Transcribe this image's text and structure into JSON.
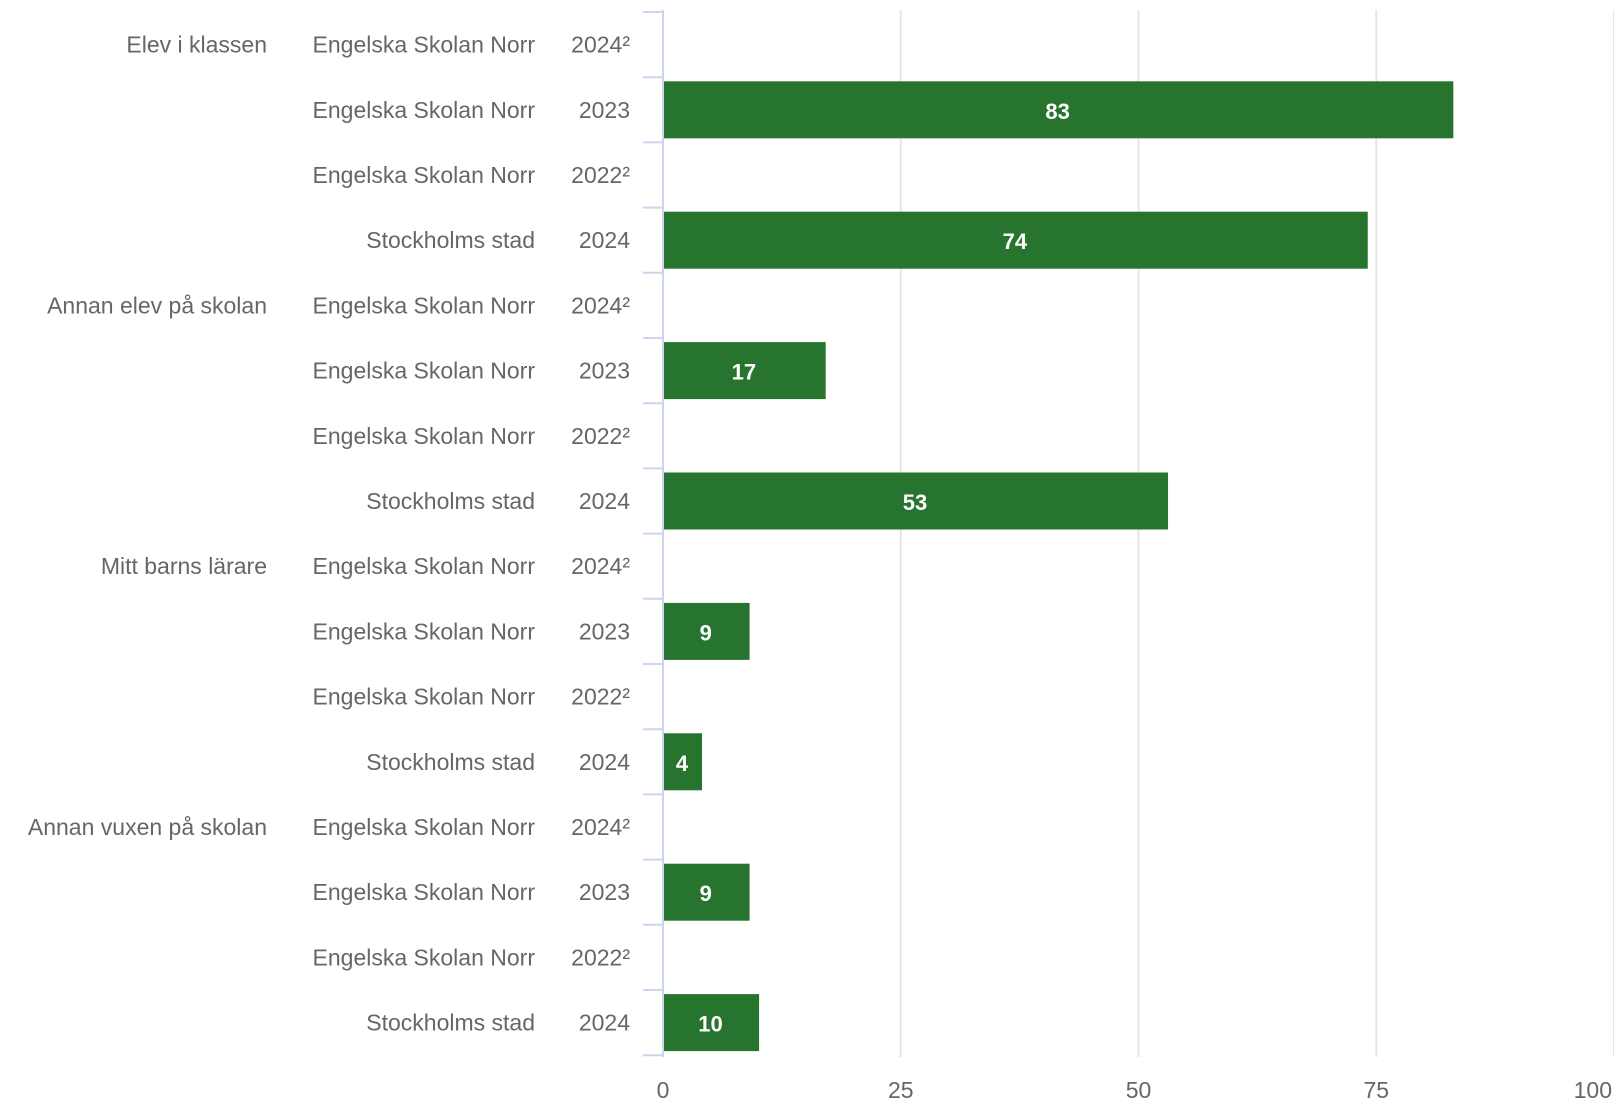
{
  "chart_data": {
    "type": "bar",
    "orientation": "horizontal",
    "xlim": [
      0,
      100
    ],
    "x_ticks": [
      "0",
      "25",
      "50",
      "75",
      "100"
    ],
    "grid": true,
    "legend": "none",
    "bar_color": "#27742f",
    "groups": [
      {
        "category": "Elev i klassen",
        "rows": [
          {
            "entity": "Engelska Skolan Norr",
            "year": "2024²",
            "value": null,
            "label": ""
          },
          {
            "entity": "Engelska Skolan Norr",
            "year": "2023",
            "value": 83,
            "label": "83"
          },
          {
            "entity": "Engelska Skolan Norr",
            "year": "2022²",
            "value": null,
            "label": ""
          },
          {
            "entity": "Stockholms stad",
            "year": "2024",
            "value": 74,
            "label": "74"
          }
        ]
      },
      {
        "category": "Annan elev på skolan",
        "rows": [
          {
            "entity": "Engelska Skolan Norr",
            "year": "2024²",
            "value": null,
            "label": ""
          },
          {
            "entity": "Engelska Skolan Norr",
            "year": "2023",
            "value": 17,
            "label": "17"
          },
          {
            "entity": "Engelska Skolan Norr",
            "year": "2022²",
            "value": null,
            "label": ""
          },
          {
            "entity": "Stockholms stad",
            "year": "2024",
            "value": 53,
            "label": "53"
          }
        ]
      },
      {
        "category": "Mitt barns lärare",
        "rows": [
          {
            "entity": "Engelska Skolan Norr",
            "year": "2024²",
            "value": null,
            "label": ""
          },
          {
            "entity": "Engelska Skolan Norr",
            "year": "2023",
            "value": 9,
            "label": "9"
          },
          {
            "entity": "Engelska Skolan Norr",
            "year": "2022²",
            "value": null,
            "label": ""
          },
          {
            "entity": "Stockholms stad",
            "year": "2024",
            "value": 4,
            "label": "4"
          }
        ]
      },
      {
        "category": "Annan vuxen på skolan",
        "rows": [
          {
            "entity": "Engelska Skolan Norr",
            "year": "2024²",
            "value": null,
            "label": ""
          },
          {
            "entity": "Engelska Skolan Norr",
            "year": "2023",
            "value": 9,
            "label": "9"
          },
          {
            "entity": "Engelska Skolan Norr",
            "year": "2022²",
            "value": null,
            "label": ""
          },
          {
            "entity": "Stockholms stad",
            "year": "2024",
            "value": 10,
            "label": "10"
          }
        ]
      }
    ]
  }
}
